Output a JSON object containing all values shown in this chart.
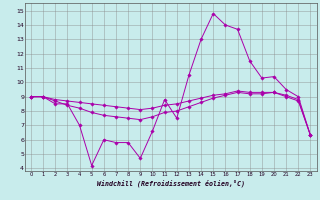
{
  "xlabel": "Windchill (Refroidissement éolien,°C)",
  "background_color": "#c8ecec",
  "line_color": "#aa00aa",
  "grid_color": "#888888",
  "xlim": [
    -0.5,
    23.5
  ],
  "ylim": [
    3.8,
    15.5
  ],
  "yticks": [
    4,
    5,
    6,
    7,
    8,
    9,
    10,
    11,
    12,
    13,
    14,
    15
  ],
  "xticks": [
    0,
    1,
    2,
    3,
    4,
    5,
    6,
    7,
    8,
    9,
    10,
    11,
    12,
    13,
    14,
    15,
    16,
    17,
    18,
    19,
    20,
    21,
    22,
    23
  ],
  "series1": [
    9,
    9,
    8.5,
    8.5,
    7,
    4.2,
    6,
    5.8,
    5.8,
    4.7,
    6.6,
    8.8,
    7.5,
    10.5,
    13,
    14.8,
    14,
    13.7,
    11.5,
    10.3,
    10.4,
    9.5,
    9,
    6.3
  ],
  "series2": [
    9,
    9,
    8.7,
    8.4,
    8.2,
    7.9,
    7.7,
    7.6,
    7.5,
    7.4,
    7.6,
    7.9,
    8.0,
    8.3,
    8.6,
    8.9,
    9.1,
    9.3,
    9.2,
    9.2,
    9.3,
    9.0,
    8.7,
    6.3
  ],
  "series3": [
    9,
    9,
    8.8,
    8.7,
    8.6,
    8.5,
    8.4,
    8.3,
    8.2,
    8.1,
    8.2,
    8.4,
    8.5,
    8.7,
    8.9,
    9.1,
    9.2,
    9.4,
    9.3,
    9.3,
    9.3,
    9.1,
    8.8,
    6.3
  ]
}
